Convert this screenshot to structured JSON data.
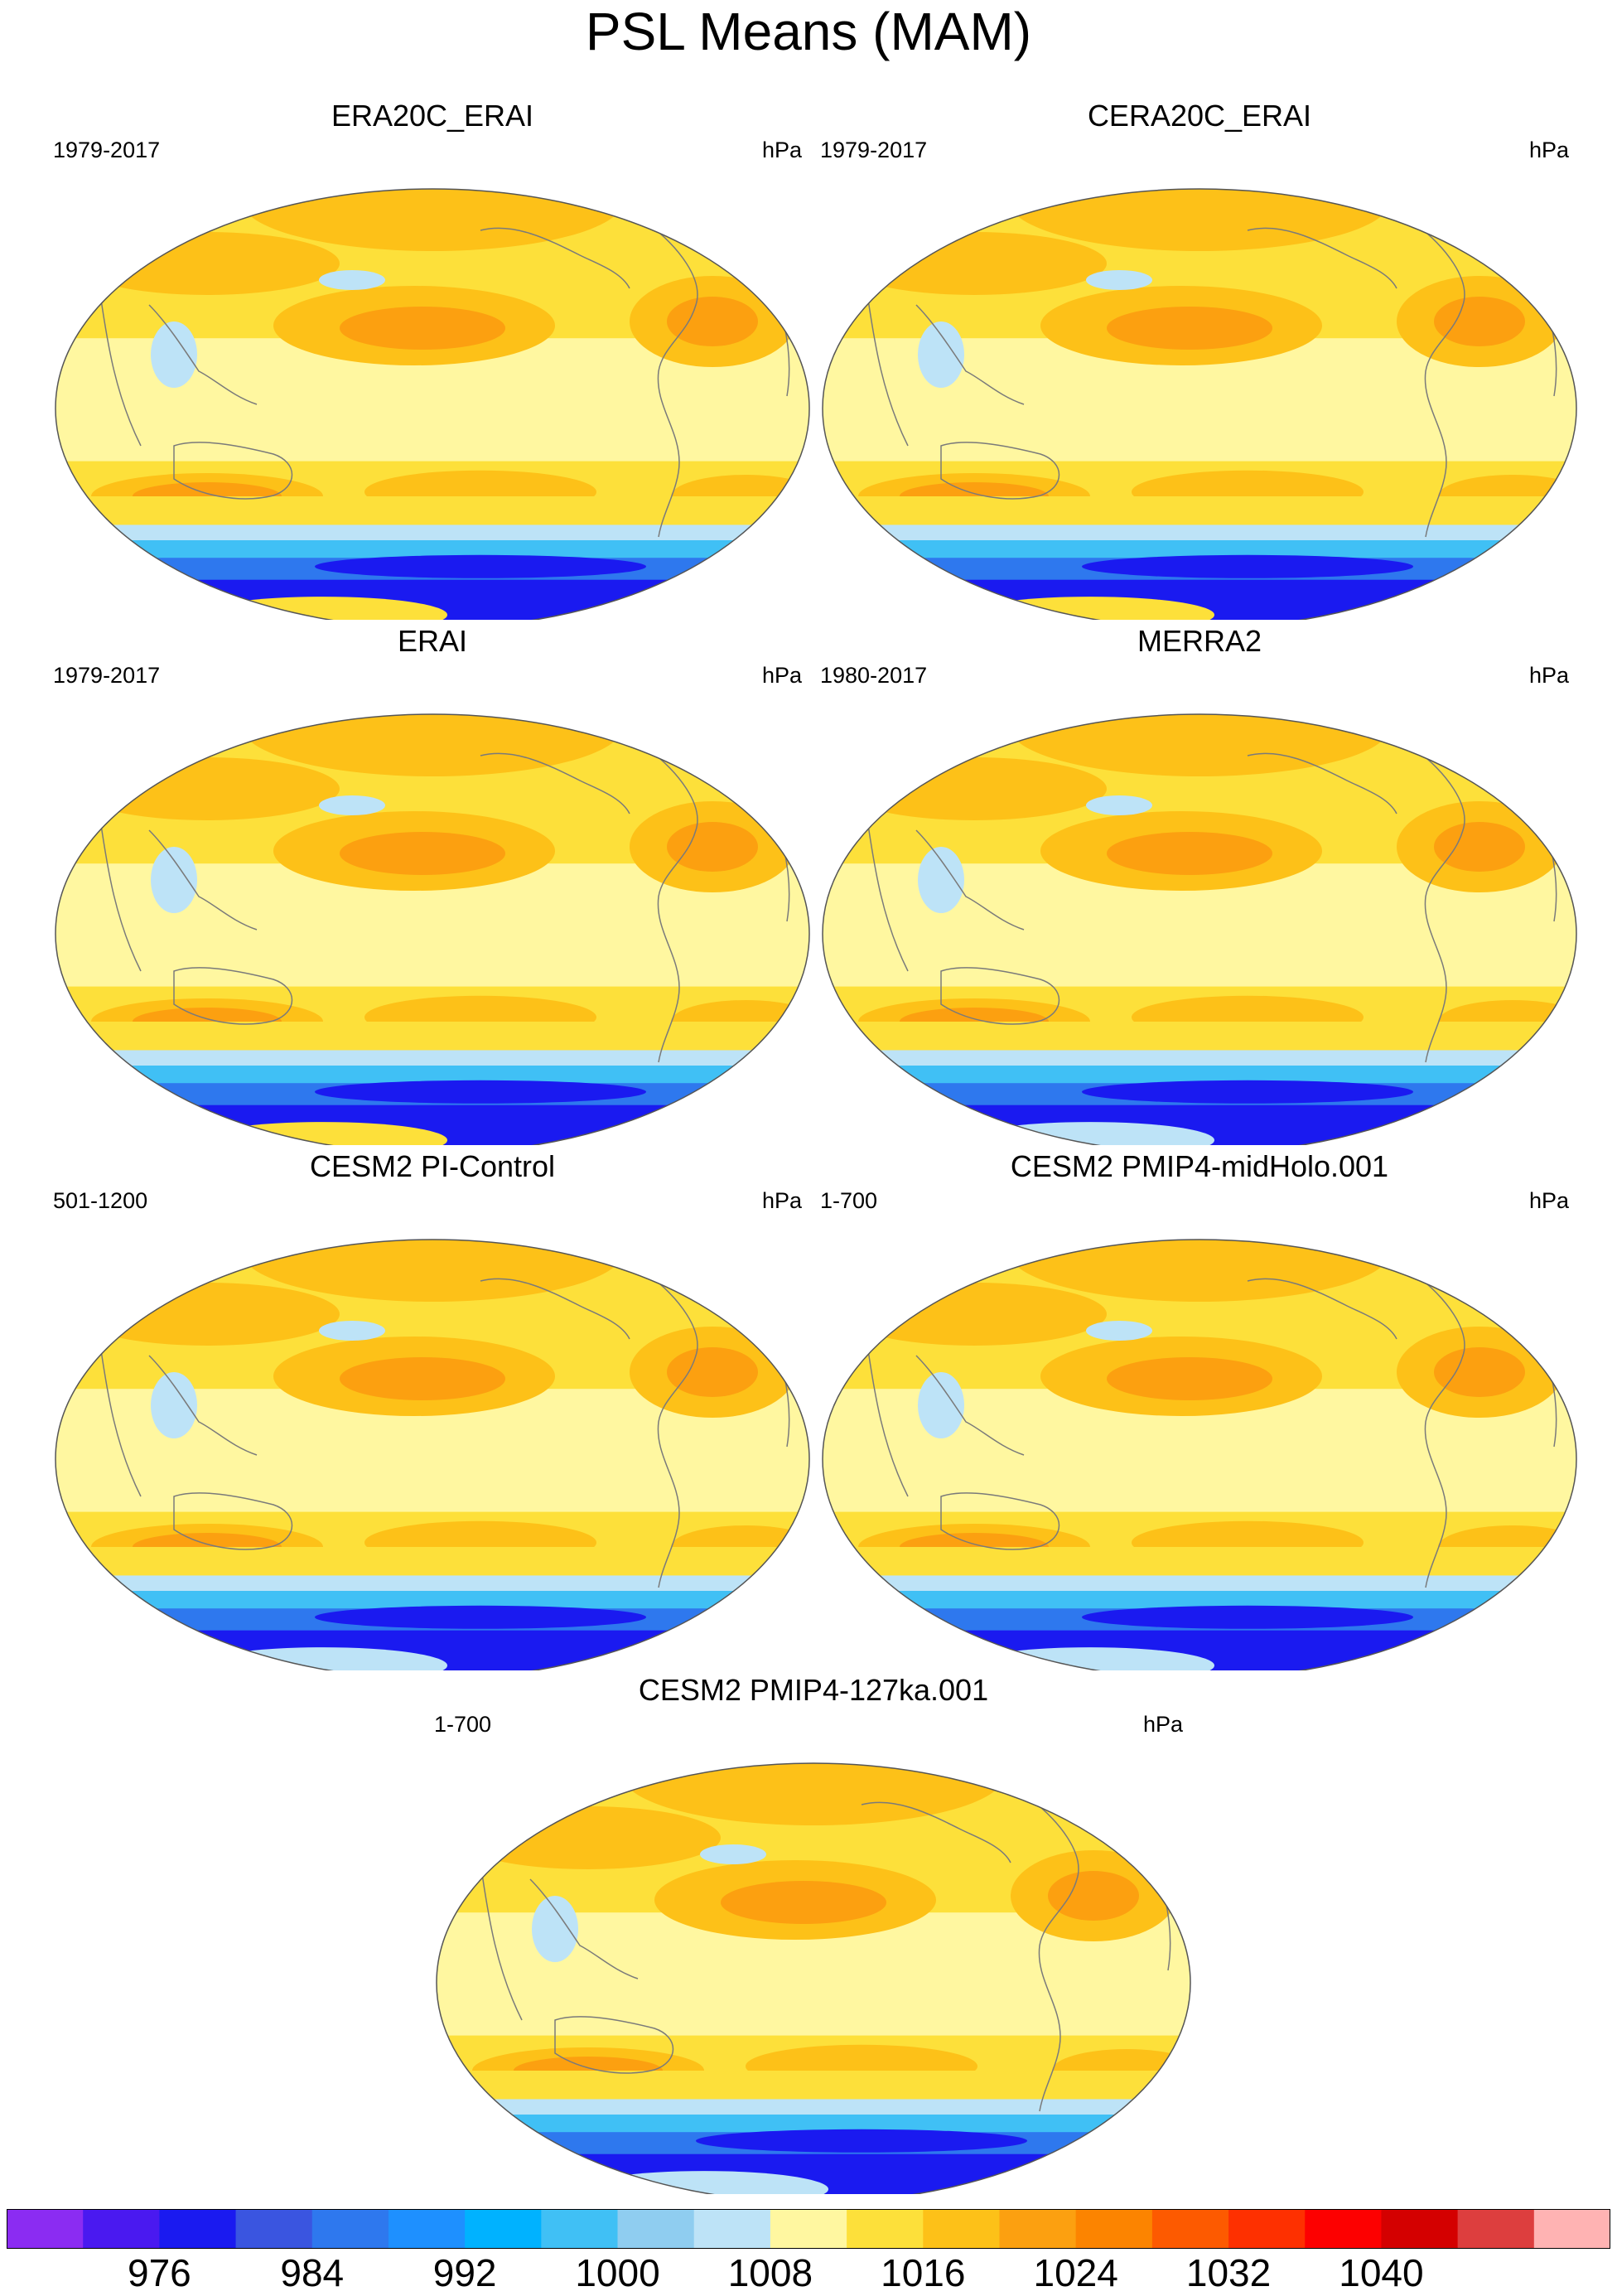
{
  "title": "PSL Means (MAM)",
  "panels": [
    {
      "id": "era20c",
      "title": "ERA20C_ERAI",
      "years": "1979-2017",
      "unit": "hPa",
      "antarctic_high": true
    },
    {
      "id": "cera20c",
      "title": "CERA20C_ERAI",
      "years": "1979-2017",
      "unit": "hPa",
      "antarctic_high": true
    },
    {
      "id": "erai",
      "title": "ERAI",
      "years": "1979-2017",
      "unit": "hPa",
      "antarctic_high": true
    },
    {
      "id": "merra2",
      "title": "MERRA2",
      "years": "1980-2017",
      "unit": "hPa",
      "antarctic_high": false
    },
    {
      "id": "cesm2-picontrol",
      "title": "CESM2 PI-Control",
      "years": "501-1200",
      "unit": "hPa",
      "antarctic_high": false
    },
    {
      "id": "cesm2-midholo",
      "title": "CESM2 PMIP4-midHolo.001",
      "years": "1-700",
      "unit": "hPa",
      "antarctic_high": false
    },
    {
      "id": "cesm2-127ka",
      "title": "CESM2 PMIP4-127ka.001",
      "years": "1-700",
      "unit": "hPa",
      "antarctic_high": false
    }
  ],
  "colorbar": {
    "colors": [
      "#8b2cf2",
      "#4a19f0",
      "#1a1af0",
      "#3a55e0",
      "#2e78ee",
      "#1e90ff",
      "#00b2ff",
      "#40c0f5",
      "#8fcdf0",
      "#bde3f7",
      "#fff7a0",
      "#fde03a",
      "#fdc118",
      "#fca010",
      "#fc8400",
      "#fd5a00",
      "#fe3000",
      "#fd0000",
      "#d40000",
      "#dd3e3e",
      "#ffb3b3"
    ],
    "labels": [
      "976",
      "984",
      "992",
      "1000",
      "1008",
      "1016",
      "1024",
      "1032",
      "1040"
    ]
  },
  "map_colors": {
    "zonal_bands": [
      "#fff7a0",
      "#fde03a",
      "#fdc118",
      "#fca010",
      "#fde03a",
      "#bde3f7",
      "#40c0f5",
      "#2e78ee",
      "#1a1af0"
    ],
    "coast": "#7a7a7a"
  }
}
